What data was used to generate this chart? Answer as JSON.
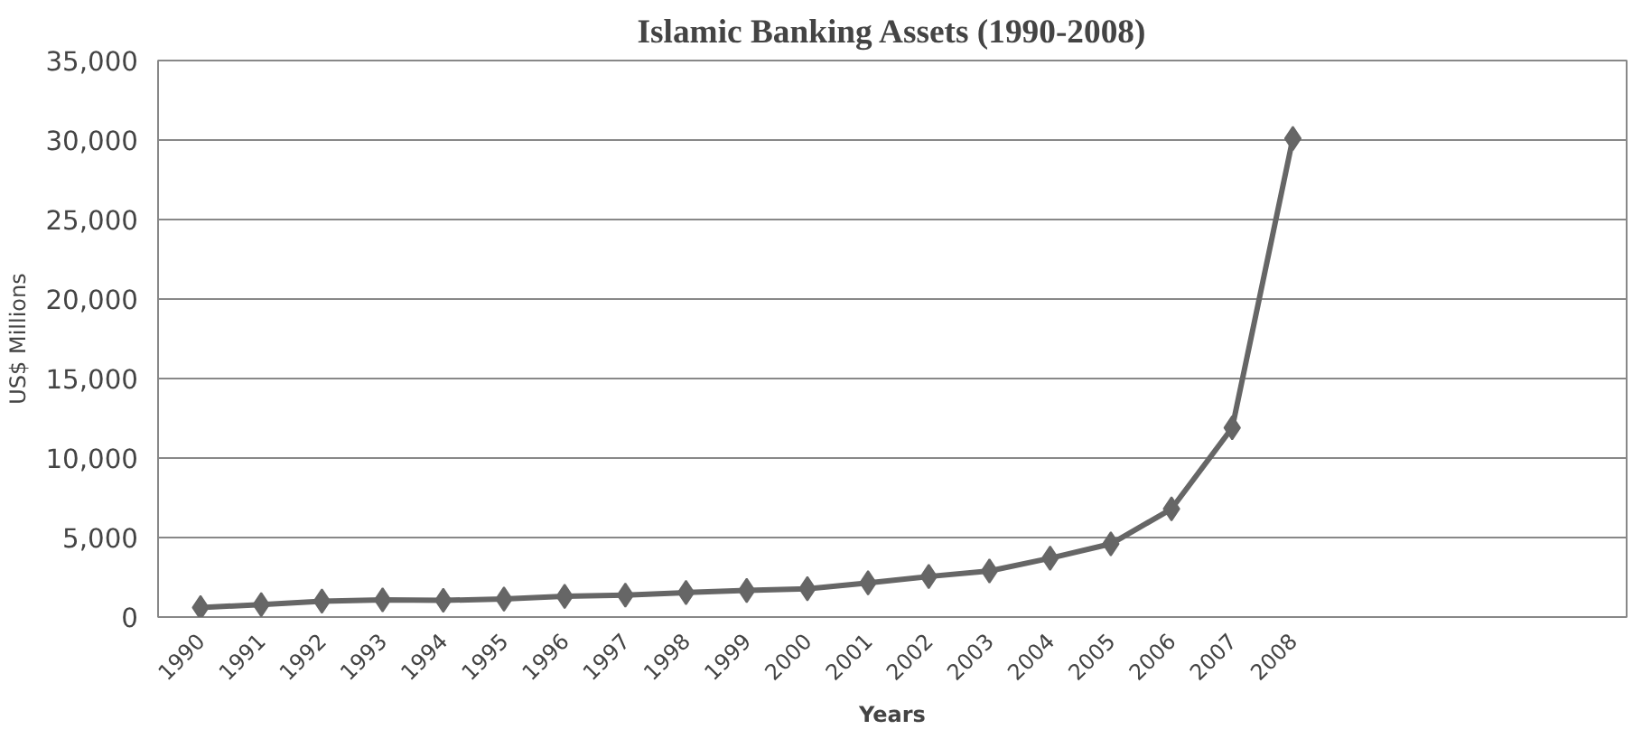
{
  "chart_data": {
    "type": "line",
    "title": "Islamic Banking Assets (1990-2008)",
    "xlabel": "Years",
    "ylabel": "US$ Millions",
    "categories": [
      "1990",
      "1991",
      "1992",
      "1993",
      "1994",
      "1995",
      "1996",
      "1997",
      "1998",
      "1999",
      "2000",
      "2001",
      "2002",
      "2003",
      "2004",
      "2005",
      "2006",
      "2007",
      "2008"
    ],
    "series": [
      {
        "color": "#666666",
        "values": [
          600,
          780,
          1000,
          1080,
          1050,
          1130,
          1300,
          1380,
          1540,
          1670,
          1780,
          2150,
          2550,
          2900,
          3700,
          4600,
          6800,
          11900,
          30100
        ]
      }
    ],
    "ylim": [
      0,
      35000
    ],
    "yticks": [
      {
        "value": 0,
        "label": "0"
      },
      {
        "value": 5000,
        "label": "5,000"
      },
      {
        "value": 10000,
        "label": "10,000"
      },
      {
        "value": 15000,
        "label": "15,000"
      },
      {
        "value": 20000,
        "label": "20,000"
      },
      {
        "value": 25000,
        "label": "25,000"
      },
      {
        "value": 30000,
        "label": "30,000"
      },
      {
        "value": 35000,
        "label": "35,000"
      }
    ],
    "grid": "y",
    "marker": "diamond",
    "line_style": "solid"
  }
}
